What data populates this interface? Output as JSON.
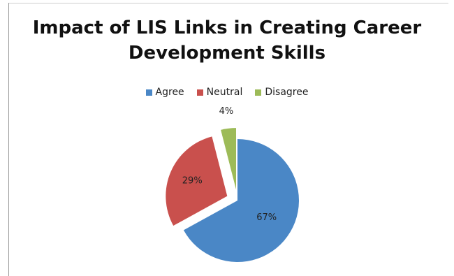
{
  "chart_data": {
    "type": "pie",
    "title_lines": [
      "Impact of LIS Links in Creating Career",
      "Development Skills"
    ],
    "categories": [
      "Agree",
      "Neutral",
      "Disagree"
    ],
    "values": [
      67,
      29,
      4
    ],
    "data_labels": [
      "67%",
      "29%",
      "4%"
    ],
    "colors": [
      "#4a87c6",
      "#c9504d",
      "#9dbb58"
    ],
    "legend_position": "top",
    "exploded": [
      false,
      true,
      true
    ]
  }
}
